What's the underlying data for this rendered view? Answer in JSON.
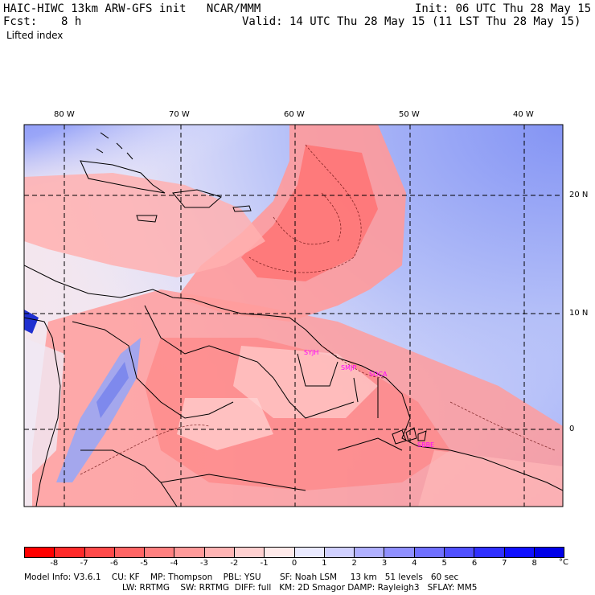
{
  "header": {
    "title_left": "HAIC-HIWC 13km ARW-GFS init   NCAR/MMM",
    "init": "Init: 06 UTC Thu 28 May 15",
    "fcst_label": "Fcst:",
    "fcst_value": "8 h",
    "valid": "Valid: 14 UTC Thu 28 May 15 (11 LST Thu 28 May 15)",
    "field": "Lifted index"
  },
  "map": {
    "lon_labels": [
      "80 W",
      "70 W",
      "60 W",
      "50 W",
      "40 W"
    ],
    "lat_labels": [
      "20 N",
      "10 N",
      "0"
    ],
    "stations": [
      "SYJH",
      "SMJP",
      "SOCA",
      "SBBE"
    ]
  },
  "colorbar": {
    "labels": [
      "-8",
      "-7",
      "-6",
      "-5",
      "-4",
      "-3",
      "-2",
      "-1",
      "0",
      "1",
      "2",
      "3",
      "4",
      "5",
      "6",
      "7",
      "8"
    ],
    "unit": "°C",
    "colors": [
      "#ff0000",
      "#ff2a2a",
      "#ff4a4a",
      "#ff6565",
      "#ff8080",
      "#ff9a9a",
      "#ffb4b4",
      "#ffd0d0",
      "#ffeaea",
      "#eaeaff",
      "#d0d0ff",
      "#b0b0ff",
      "#9090ff",
      "#7070ff",
      "#5050ff",
      "#3030ff",
      "#1010ff",
      "#0000e8"
    ]
  },
  "footer": {
    "line1": "Model Info: V3.6.1    CU: KF    MP: Thompson    PBL: YSU       SF: Noah LSM     13 km   51 levels   60 sec",
    "line2": "LW: RRTMG    SW: RRTMG  DIFF: full   KM: 2D Smagor DAMP: Rayleigh3   SFLAY: MM5"
  }
}
